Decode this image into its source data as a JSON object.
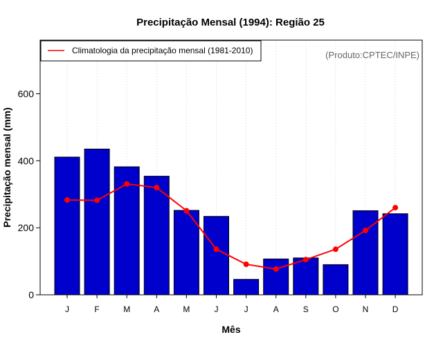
{
  "chart_data": {
    "type": "bar",
    "title": "Precipitação Mensal (1994): Região 25",
    "xlabel": "Mês",
    "ylabel": "Precipitação mensal (mm)",
    "source_note": "(Produto:CPTEC/INPE)",
    "categories": [
      "J",
      "F",
      "M",
      "A",
      "M",
      "J",
      "J",
      "A",
      "S",
      "O",
      "N",
      "D"
    ],
    "ylim": [
      0,
      760
    ],
    "yticks": [
      0,
      200,
      400,
      600
    ],
    "yticks_labels": [
      "0",
      "200",
      "400",
      "600"
    ],
    "grid": "vertical-dotted",
    "legend_position": "top-left",
    "series": [
      {
        "name": "Precipitação mensal 1994",
        "kind": "bar",
        "color": "#0000cc",
        "values": [
          411,
          435,
          382,
          354,
          252,
          234,
          46,
          107,
          110,
          90,
          251,
          242
        ]
      },
      {
        "name": "Climatologia da precipitação mensal (1981-2010)",
        "kind": "line",
        "color": "#ff0000",
        "values": [
          283,
          282,
          331,
          320,
          251,
          136,
          91,
          77,
          105,
          136,
          192,
          260
        ]
      }
    ]
  }
}
